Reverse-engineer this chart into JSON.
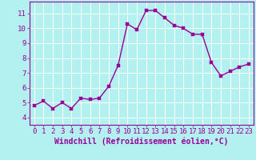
{
  "x": [
    0,
    1,
    2,
    3,
    4,
    5,
    6,
    7,
    8,
    9,
    10,
    11,
    12,
    13,
    14,
    15,
    16,
    17,
    18,
    19,
    20,
    21,
    22,
    23
  ],
  "y": [
    4.8,
    5.1,
    4.6,
    5.0,
    4.6,
    5.3,
    5.2,
    5.3,
    6.1,
    7.5,
    10.3,
    9.9,
    11.2,
    11.2,
    10.7,
    10.2,
    10.0,
    9.6,
    9.6,
    7.7,
    6.8,
    7.1,
    7.4,
    7.6
  ],
  "line_color": "#990099",
  "marker_color": "#990099",
  "bg_color": "#b3f0f0",
  "grid_color": "#ffffff",
  "axis_label_color": "#990099",
  "tick_color": "#990099",
  "xlabel": "Windchill (Refroidissement éolien,°C)",
  "ylim": [
    3.5,
    11.8
  ],
  "xlim": [
    -0.5,
    23.5
  ],
  "yticks": [
    4,
    5,
    6,
    7,
    8,
    9,
    10,
    11
  ],
  "xticks": [
    0,
    1,
    2,
    3,
    4,
    5,
    6,
    7,
    8,
    9,
    10,
    11,
    12,
    13,
    14,
    15,
    16,
    17,
    18,
    19,
    20,
    21,
    22,
    23
  ],
  "tick_fontsize": 6.5,
  "label_fontsize": 7,
  "line_width": 1.0,
  "marker_size": 2.5
}
